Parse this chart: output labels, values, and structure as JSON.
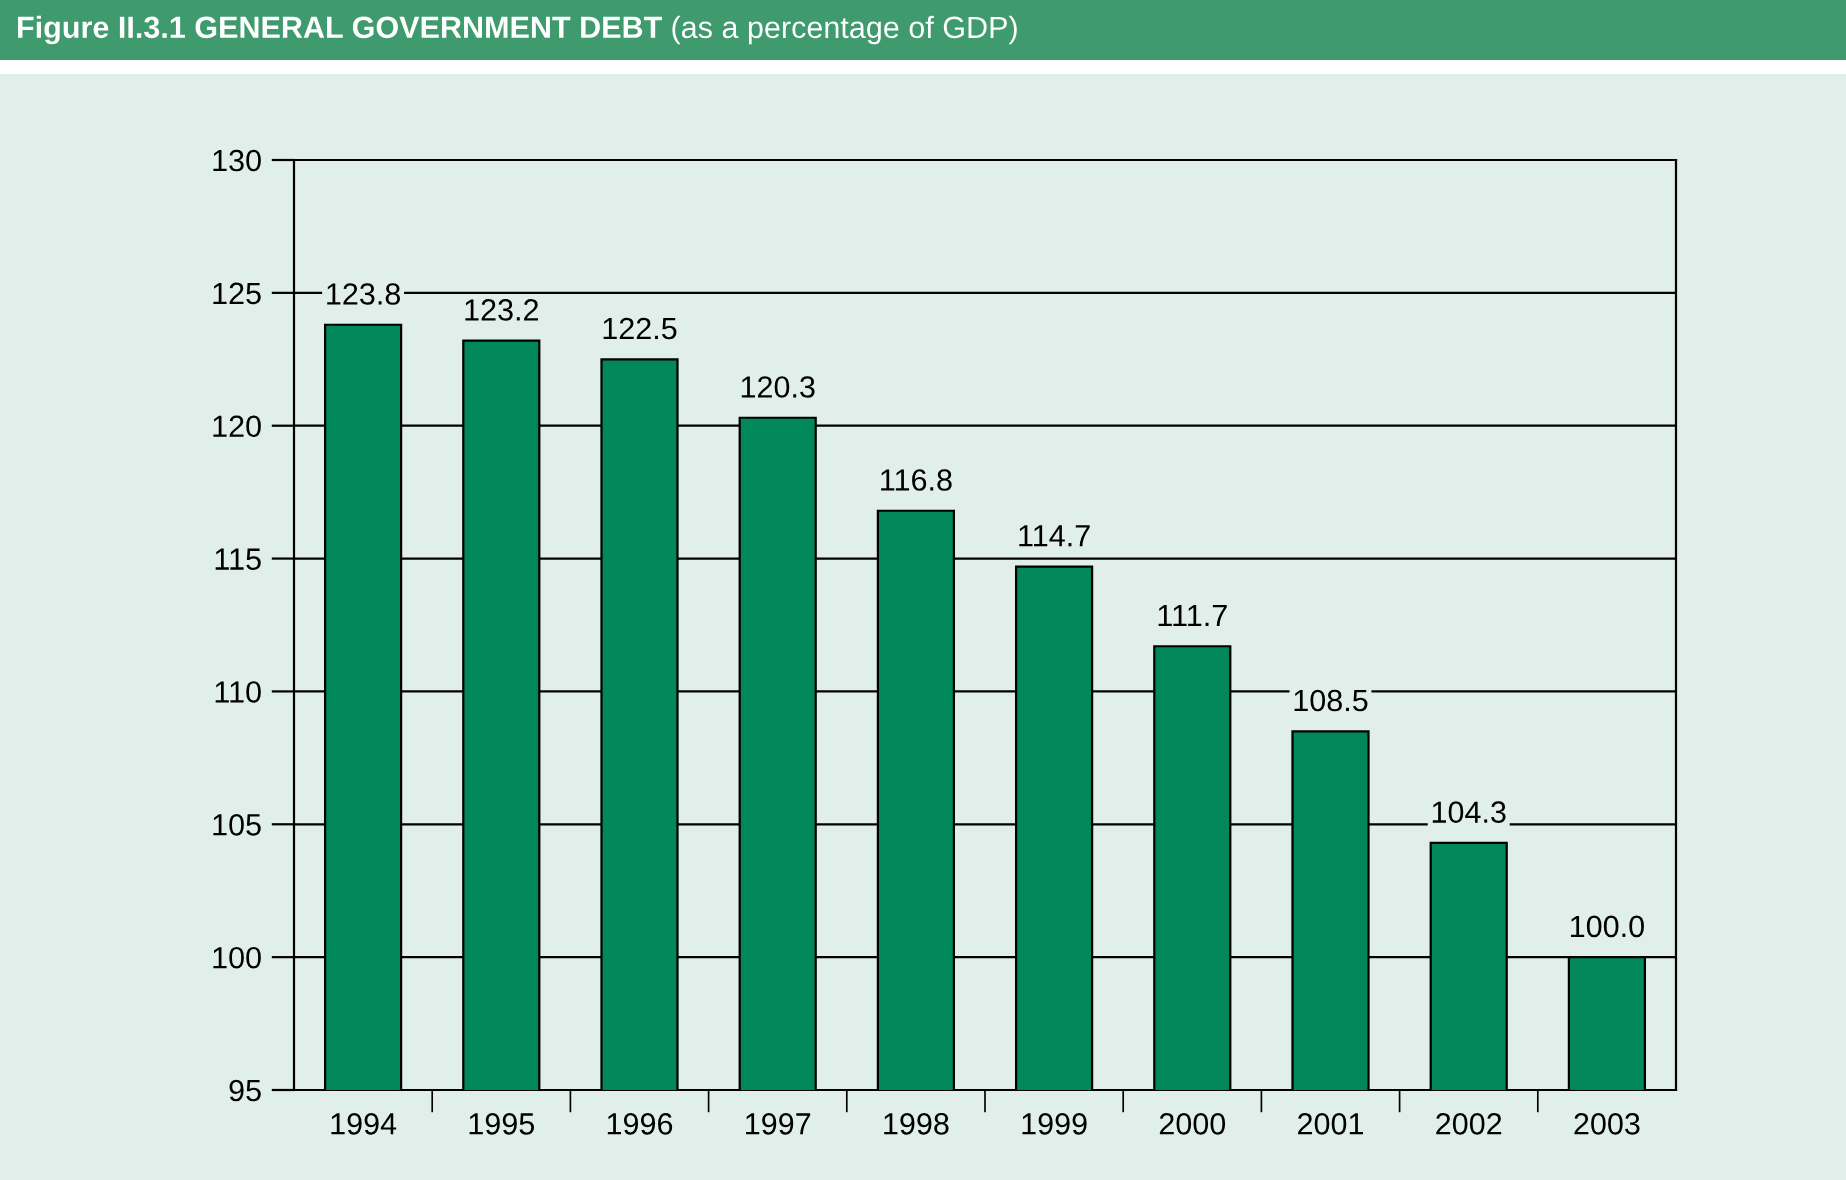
{
  "chart_data": {
    "type": "bar",
    "title": "Figure II.3.1 GENERAL GOVERNMENT DEBT",
    "subtitle": "(as a percentage of GDP)",
    "categories": [
      "1994",
      "1995",
      "1996",
      "1997",
      "1998",
      "1999",
      "2000",
      "2001",
      "2002",
      "2003"
    ],
    "values": [
      123.8,
      123.2,
      122.5,
      120.3,
      116.8,
      114.7,
      111.7,
      108.5,
      104.3,
      100.0
    ],
    "value_labels": [
      "123.8",
      "123.2",
      "122.5",
      "120.3",
      "116.8",
      "114.7",
      "111.7",
      "108.5",
      "104.3",
      "100.0"
    ],
    "color": "#00875a",
    "ylim": [
      95,
      130
    ],
    "yticks": [
      95,
      100,
      105,
      110,
      115,
      120,
      125,
      130
    ],
    "grid": "y"
  }
}
